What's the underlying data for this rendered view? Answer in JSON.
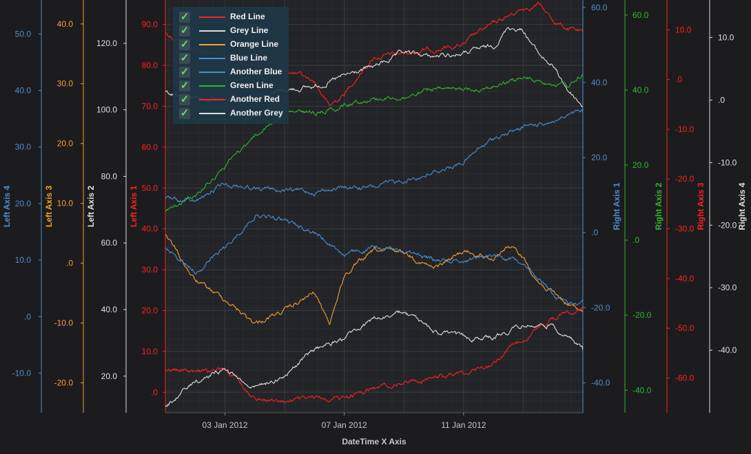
{
  "chart_data": {
    "type": "line",
    "x_axis": {
      "title": "DateTime X Axis",
      "tick_labels": [
        "03 Jan 2012",
        "07 Jan 2012",
        "11 Jan 2012"
      ],
      "range": [
        "2012-01-01",
        "2012-01-15"
      ]
    },
    "y_axes": [
      {
        "id": "left4",
        "title": "Left Axis 4",
        "side": "left",
        "color": "#4a8fd4",
        "range": [
          -17,
          56
        ],
        "ticks": [
          -10,
          0,
          10,
          20,
          30,
          40,
          50
        ],
        "tick_labels": [
          "-10.0",
          ".0",
          "10.0",
          "20.0",
          "30.0",
          "40.0",
          "50.0"
        ]
      },
      {
        "id": "left3",
        "title": "Left Axis 3",
        "side": "left",
        "color": "#f5a031",
        "range": [
          -25,
          44
        ],
        "ticks": [
          -20,
          -10,
          0,
          10,
          20,
          30,
          40
        ],
        "tick_labels": [
          "-20.0",
          "-10.0",
          ".0",
          "10.0",
          "20.0",
          "30.0",
          "40.0"
        ]
      },
      {
        "id": "left2",
        "title": "Left Axis 2",
        "side": "left",
        "color": "#e0e0e0",
        "range": [
          9,
          133
        ],
        "ticks": [
          20,
          40,
          60,
          80,
          100,
          120
        ],
        "tick_labels": [
          "20.0",
          "40.0",
          "60.0",
          "80.0",
          "100.0",
          "120.0"
        ]
      },
      {
        "id": "left1",
        "title": "Left Axis 1",
        "side": "left",
        "color": "#ff2020",
        "range": [
          -5,
          96
        ],
        "ticks": [
          0,
          10,
          20,
          30,
          40,
          50,
          60,
          70,
          80,
          90
        ],
        "tick_labels": [
          ".0",
          "10.0",
          "20.0",
          "30.0",
          "40.0",
          "50.0",
          "60.0",
          "70.0",
          "80.0",
          "90.0"
        ]
      },
      {
        "id": "right1",
        "title": "Right Axis 1",
        "side": "right",
        "color": "#4a8fd4",
        "range": [
          -48,
          62
        ],
        "ticks": [
          -40,
          -20,
          0,
          20,
          40,
          60
        ],
        "tick_labels": [
          "-40.0",
          "-20.0",
          ".0",
          "20.0",
          "40.0",
          "60.0"
        ]
      },
      {
        "id": "right2",
        "title": "Right Axis 2",
        "side": "right",
        "color": "#2eb82e",
        "range": [
          -46,
          64
        ],
        "ticks": [
          -40,
          -20,
          0,
          20,
          40,
          60
        ],
        "tick_labels": [
          "-40.0",
          "-20.0",
          ".0",
          "20.0",
          "40.0",
          "60.0"
        ]
      },
      {
        "id": "right3",
        "title": "Right Axis 3",
        "side": "right",
        "color": "#ff2020",
        "range": [
          -67,
          16
        ],
        "ticks": [
          -60,
          -50,
          -40,
          -30,
          -20,
          -10,
          0,
          10
        ],
        "tick_labels": [
          "-60.0",
          "-50.0",
          "-40.0",
          "-30.0",
          "-20.0",
          "-10.0",
          ".0",
          "10.0"
        ]
      },
      {
        "id": "right4",
        "title": "Right Axis 4",
        "side": "right",
        "color": "#e0e0e0",
        "range": [
          -50,
          16
        ],
        "ticks": [
          -40,
          -30,
          -20,
          -10,
          0,
          10
        ],
        "tick_labels": [
          "-40.0",
          "-30.0",
          "-20.0",
          "-10.0",
          ".0",
          "10.0"
        ]
      }
    ],
    "series": [
      {
        "name": "Red Line",
        "color": "#ff2020",
        "axis": "left1",
        "x": [
          "2012-01-01",
          "2012-01-01T12:00",
          "2012-01-02",
          "2012-01-03",
          "2012-01-04",
          "2012-01-05",
          "2012-01-06",
          "2012-01-06T12:00",
          "2012-01-07",
          "2012-01-07T12:00",
          "2012-01-08",
          "2012-01-09",
          "2012-01-10",
          "2012-01-11",
          "2012-01-11T12:00",
          "2012-01-12",
          "2012-01-12T12:00",
          "2012-01-13",
          "2012-01-13T12:00",
          "2012-01-14",
          "2012-01-14T12:00",
          "2012-01-15"
        ],
        "values": [
          88,
          86,
          84,
          82,
          80,
          79,
          76,
          70,
          73,
          78,
          82,
          83,
          84,
          85,
          88,
          90,
          92,
          94,
          95,
          91,
          89,
          88
        ]
      },
      {
        "name": "Grey Line",
        "color": "#e0e0e0",
        "axis": "left2",
        "x": [
          "2012-01-01",
          "2012-01-02",
          "2012-01-03",
          "2012-01-04",
          "2012-01-05",
          "2012-01-06",
          "2012-01-07",
          "2012-01-08",
          "2012-01-09",
          "2012-01-10",
          "2012-01-11",
          "2012-01-12",
          "2012-01-12T12:00",
          "2012-01-13",
          "2012-01-13T12:00",
          "2012-01-14",
          "2012-01-14T12:00",
          "2012-01-15"
        ],
        "values": [
          105,
          104,
          103,
          104,
          106,
          107,
          110,
          113,
          117,
          116,
          117,
          119,
          125,
          124,
          117,
          113,
          106,
          101
        ]
      },
      {
        "name": "Orange Line",
        "color": "#f5a031",
        "axis": "left3",
        "x": [
          "2012-01-01",
          "2012-01-01T12:00",
          "2012-01-02",
          "2012-01-03",
          "2012-01-04",
          "2012-01-05",
          "2012-01-06",
          "2012-01-06T12:00",
          "2012-01-07",
          "2012-01-08",
          "2012-01-09",
          "2012-01-10",
          "2012-01-11",
          "2012-01-12",
          "2012-01-12T12:00",
          "2012-01-13",
          "2012-01-13T12:00",
          "2012-01-14",
          "2012-01-14T12:00",
          "2012-01-15"
        ],
        "values": [
          5,
          1,
          -3,
          -6,
          -10,
          -8,
          -5,
          -10,
          -2,
          2,
          2,
          -1,
          2,
          1,
          3,
          1,
          -3,
          -5,
          -7,
          -8
        ]
      },
      {
        "name": "Blue Line",
        "color": "#4a8fd4",
        "axis": "right1",
        "x": [
          "2012-01-01",
          "2012-01-02",
          "2012-01-03",
          "2012-01-04",
          "2012-01-05",
          "2012-01-06",
          "2012-01-07",
          "2012-01-08",
          "2012-01-09",
          "2012-01-10",
          "2012-01-11",
          "2012-01-12",
          "2012-01-13",
          "2012-01-14",
          "2012-01-15"
        ],
        "values": [
          9,
          8,
          13,
          12,
          11,
          11,
          12,
          12,
          14,
          16,
          19,
          25,
          28,
          30,
          32
        ]
      },
      {
        "name": "Another Blue",
        "color": "#4a8fd4",
        "axis": "left4",
        "x": [
          "2012-01-01",
          "2012-01-02",
          "2012-01-03",
          "2012-01-04",
          "2012-01-05",
          "2012-01-06",
          "2012-01-07",
          "2012-01-08",
          "2012-01-09",
          "2012-01-10",
          "2012-01-11",
          "2012-01-12",
          "2012-01-13",
          "2012-01-13T12:00",
          "2012-01-14",
          "2012-01-14T12:00",
          "2012-01-15"
        ],
        "values": [
          12,
          8,
          12,
          18,
          17,
          15,
          11,
          12,
          12,
          10,
          10,
          11,
          10,
          7,
          4,
          2,
          3
        ]
      },
      {
        "name": "Green Line",
        "color": "#2eb82e",
        "axis": "right2",
        "x": [
          "2012-01-01",
          "2012-01-02",
          "2012-01-03",
          "2012-01-04",
          "2012-01-05",
          "2012-01-06",
          "2012-01-07",
          "2012-01-08",
          "2012-01-09",
          "2012-01-10",
          "2012-01-11",
          "2012-01-12",
          "2012-01-13",
          "2012-01-14",
          "2012-01-14T12:00",
          "2012-01-15"
        ],
        "values": [
          8,
          12,
          20,
          28,
          34,
          34,
          36,
          38,
          38,
          40,
          40,
          41,
          43,
          42,
          41,
          44
        ]
      },
      {
        "name": "Another Red",
        "color": "#ff2020",
        "axis": "right3",
        "x": [
          "2012-01-01",
          "2012-01-02",
          "2012-01-02T12:00",
          "2012-01-03",
          "2012-01-04",
          "2012-01-05",
          "2012-01-06",
          "2012-01-07",
          "2012-01-08",
          "2012-01-09",
          "2012-01-10",
          "2012-01-11",
          "2012-01-12",
          "2012-01-13",
          "2012-01-14",
          "2012-01-15"
        ],
        "values": [
          -58,
          -59,
          -59,
          -58,
          -64,
          -65,
          -64,
          -64,
          -62,
          -61,
          -60,
          -59,
          -57,
          -52,
          -48,
          -46
        ]
      },
      {
        "name": "Another Grey",
        "color": "#e0e0e0",
        "axis": "right4",
        "x": [
          "2012-01-01",
          "2012-01-02",
          "2012-01-03",
          "2012-01-04",
          "2012-01-05",
          "2012-01-06",
          "2012-01-07",
          "2012-01-08",
          "2012-01-09",
          "2012-01-10",
          "2012-01-11",
          "2012-01-12",
          "2012-01-13",
          "2012-01-14",
          "2012-01-15"
        ],
        "values": [
          -49,
          -45,
          -43,
          -46,
          -44,
          -40,
          -38,
          -35,
          -34,
          -37,
          -38,
          -38,
          -36,
          -36,
          -40
        ]
      }
    ],
    "legend": {
      "placement": "top-left",
      "checked": [
        true,
        true,
        true,
        true,
        true,
        true,
        true,
        true
      ]
    },
    "grid": true
  }
}
